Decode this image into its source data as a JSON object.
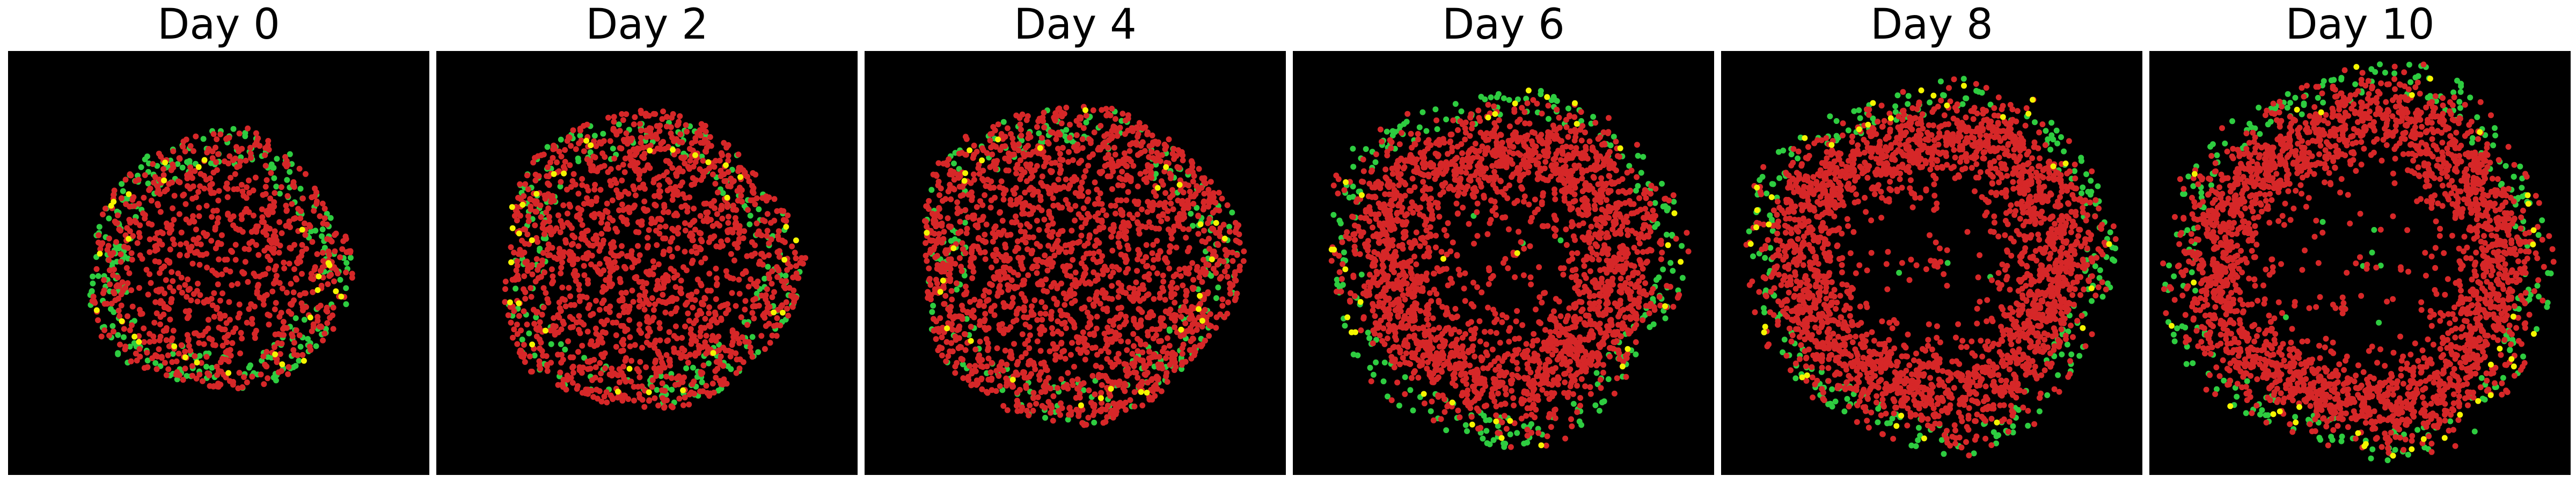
{
  "figure": {
    "background": "#ffffff",
    "panel_background": "#000000",
    "colors": {
      "red": "#d62728",
      "green": "#2ecc40",
      "yellow": "#f5f500"
    }
  },
  "chart_data": [
    {
      "type": "scatter",
      "title": "Day 0",
      "day": 0,
      "pattern": "disk",
      "r_inner": 0.0,
      "r_outer": 0.62,
      "n_red": 850,
      "n_green": 260,
      "n_yellow": 28
    },
    {
      "type": "scatter",
      "title": "Day 2",
      "day": 2,
      "pattern": "disk",
      "r_inner": 0.0,
      "r_outer": 0.71,
      "n_red": 1500,
      "n_green": 200,
      "n_yellow": 32
    },
    {
      "type": "scatter",
      "title": "Day 4",
      "day": 4,
      "pattern": "disk",
      "r_inner": 0.0,
      "r_outer": 0.76,
      "n_red": 1950,
      "n_green": 210,
      "n_yellow": 30
    },
    {
      "type": "scatter",
      "title": "Day 6",
      "day": 6,
      "pattern": "ring",
      "r_inner": 0.3,
      "r_outer": 0.82,
      "n_red": 2300,
      "n_green": 230,
      "n_yellow": 32
    },
    {
      "type": "scatter",
      "title": "Day 8",
      "day": 8,
      "pattern": "ring",
      "r_inner": 0.38,
      "r_outer": 0.85,
      "n_red": 2400,
      "n_green": 240,
      "n_yellow": 32
    },
    {
      "type": "scatter",
      "title": "Day 10",
      "day": 10,
      "pattern": "ring",
      "r_inner": 0.44,
      "r_outer": 0.9,
      "n_red": 2500,
      "n_green": 250,
      "n_yellow": 34
    }
  ]
}
